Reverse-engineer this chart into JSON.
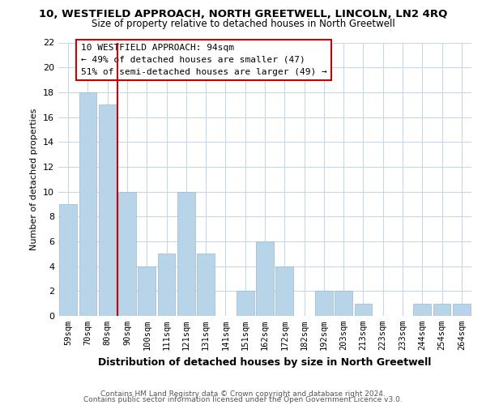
{
  "title": "10, WESTFIELD APPROACH, NORTH GREETWELL, LINCOLN, LN2 4RQ",
  "subtitle": "Size of property relative to detached houses in North Greetwell",
  "xlabel": "Distribution of detached houses by size in North Greetwell",
  "ylabel": "Number of detached properties",
  "bins": [
    "59sqm",
    "70sqm",
    "80sqm",
    "90sqm",
    "100sqm",
    "111sqm",
    "121sqm",
    "131sqm",
    "141sqm",
    "151sqm",
    "162sqm",
    "172sqm",
    "182sqm",
    "192sqm",
    "203sqm",
    "213sqm",
    "223sqm",
    "233sqm",
    "244sqm",
    "254sqm",
    "264sqm"
  ],
  "values": [
    9,
    18,
    17,
    10,
    4,
    5,
    10,
    5,
    0,
    2,
    6,
    4,
    0,
    2,
    2,
    1,
    0,
    0,
    1,
    1,
    1
  ],
  "bar_color": "#b8d4e8",
  "bar_edge_color": "#9ab8d0",
  "reference_line_color": "#cc0000",
  "reference_line_bin_index": 2,
  "annotation_text_line1": "10 WESTFIELD APPROACH: 94sqm",
  "annotation_text_line2": "← 49% of detached houses are smaller (47)",
  "annotation_text_line3": "51% of semi-detached houses are larger (49) →",
  "annotation_box_edge_color": "#cc0000",
  "ylim": [
    0,
    22
  ],
  "yticks": [
    0,
    2,
    4,
    6,
    8,
    10,
    12,
    14,
    16,
    18,
    20,
    22
  ],
  "footer_line1": "Contains HM Land Registry data © Crown copyright and database right 2024.",
  "footer_line2": "Contains public sector information licensed under the Open Government Licence v3.0.",
  "background_color": "#ffffff",
  "grid_color": "#c8d8e8",
  "title_fontsize": 9.5,
  "subtitle_fontsize": 8.5,
  "xlabel_fontsize": 9,
  "ylabel_fontsize": 8,
  "tick_fontsize": 7.5,
  "annotation_fontsize": 8,
  "footer_fontsize": 6.5
}
